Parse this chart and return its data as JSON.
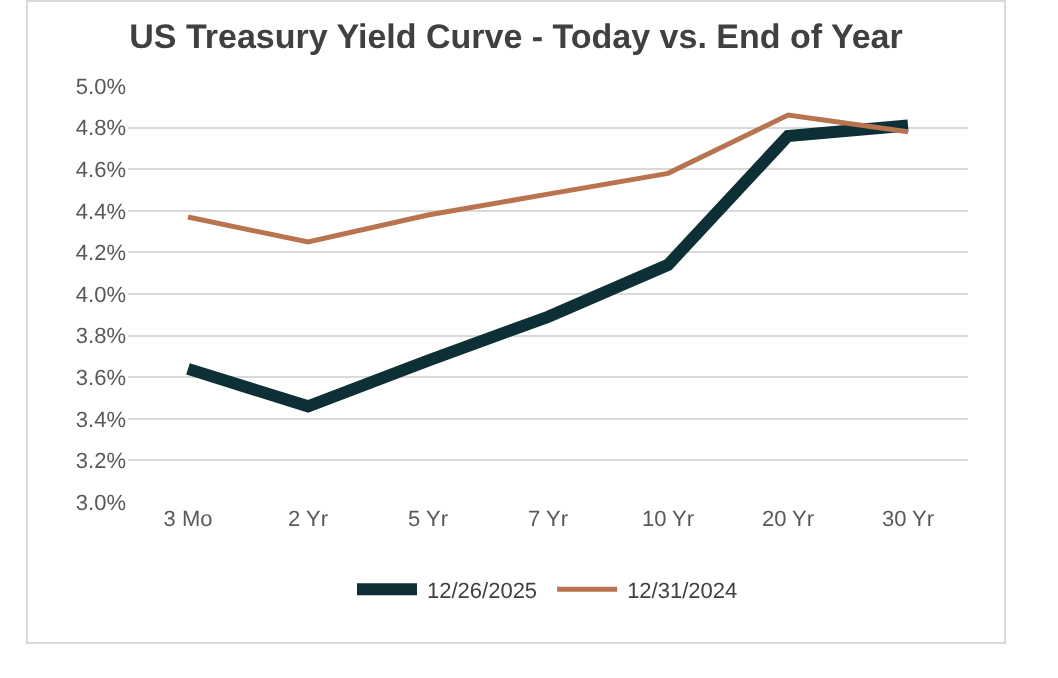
{
  "chart_data": {
    "type": "line",
    "title": "US Treasury Yield Curve - Today vs. End of Year",
    "categories": [
      "3 Mo",
      "2 Yr",
      "5 Yr",
      "7 Yr",
      "10 Yr",
      "20 Yr",
      "30 Yr"
    ],
    "series": [
      {
        "name": "12/26/2025",
        "color": "#0d2f36",
        "values": [
          3.64,
          3.46,
          3.68,
          3.89,
          4.14,
          4.76,
          4.81
        ]
      },
      {
        "name": "12/31/2024",
        "color": "#b8734f",
        "values": [
          4.37,
          4.25,
          4.38,
          4.48,
          4.58,
          4.86,
          4.78
        ]
      }
    ],
    "ylim": [
      3.0,
      5.0
    ],
    "yticks": [
      {
        "value": 3.0,
        "label": "3.0%"
      },
      {
        "value": 3.2,
        "label": "3.2%"
      },
      {
        "value": 3.4,
        "label": "3.4%"
      },
      {
        "value": 3.6,
        "label": "3.6%"
      },
      {
        "value": 3.8,
        "label": "3.8%"
      },
      {
        "value": 4.0,
        "label": "4.0%"
      },
      {
        "value": 4.2,
        "label": "4.2%"
      },
      {
        "value": 4.4,
        "label": "4.4%"
      },
      {
        "value": 4.6,
        "label": "4.6%"
      },
      {
        "value": 4.8,
        "label": "4.8%"
      },
      {
        "value": 5.0,
        "label": "5.0%"
      }
    ],
    "grid": "y",
    "legend": "bottom",
    "marker": "none",
    "line_style": "solid"
  }
}
